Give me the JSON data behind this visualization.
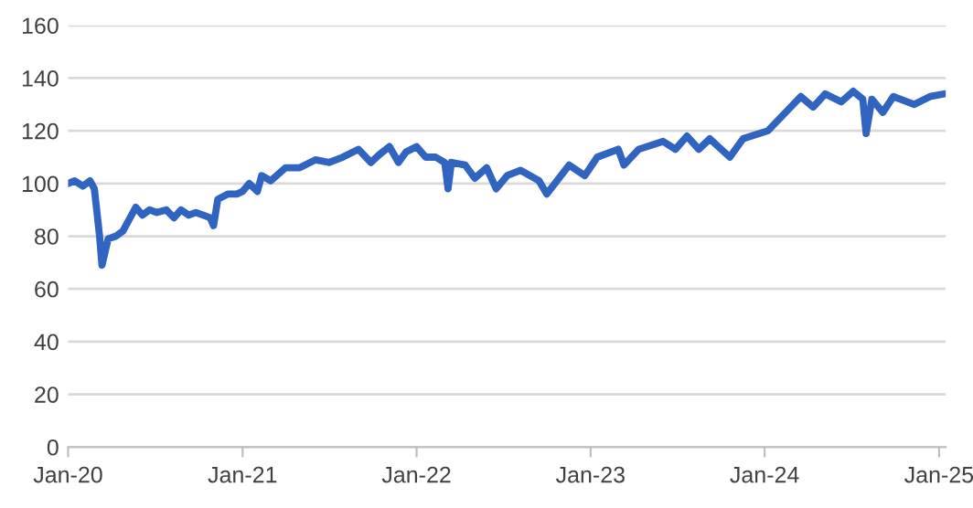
{
  "chart_data": {
    "type": "line",
    "x": [
      "2020-01-01",
      "2020-01-15",
      "2020-02-01",
      "2020-02-16",
      "2020-02-25",
      "2020-03-01",
      "2020-03-07",
      "2020-03-12",
      "2020-03-25",
      "2020-04-10",
      "2020-04-25",
      "2020-05-10",
      "2020-05-22",
      "2020-06-05",
      "2020-06-20",
      "2020-07-05",
      "2020-07-25",
      "2020-08-10",
      "2020-08-25",
      "2020-09-10",
      "2020-09-25",
      "2020-10-10",
      "2020-10-25",
      "2020-11-01",
      "2020-11-10",
      "2020-12-01",
      "2020-12-20",
      "2021-01-01",
      "2021-01-15",
      "2021-02-01",
      "2021-02-10",
      "2021-03-01",
      "2021-04-01",
      "2021-05-01",
      "2021-06-03",
      "2021-07-01",
      "2021-07-30",
      "2021-09-01",
      "2021-09-27",
      "2021-10-15",
      "2021-11-05",
      "2021-11-24",
      "2021-12-10",
      "2022-01-01",
      "2022-01-20",
      "2022-02-10",
      "2022-03-01",
      "2022-03-08",
      "2022-03-15",
      "2022-04-13",
      "2022-05-03",
      "2022-05-28",
      "2022-06-17",
      "2022-07-10",
      "2022-08-07",
      "2022-09-15",
      "2022-10-01",
      "2022-11-17",
      "2022-12-20",
      "2023-01-15",
      "2023-02-28",
      "2023-03-12",
      "2023-04-12",
      "2023-06-02",
      "2023-06-28",
      "2023-07-22",
      "2023-08-16",
      "2023-09-08",
      "2023-10-20",
      "2023-11-17",
      "2024-01-08",
      "2024-03-17",
      "2024-04-12",
      "2024-05-07",
      "2024-06-10",
      "2024-07-05",
      "2024-07-25",
      "2024-08-01",
      "2024-08-13",
      "2024-09-05",
      "2024-09-27",
      "2024-11-10",
      "2024-12-13",
      "2025-01-12"
    ],
    "series": [
      {
        "color": "#3163c0",
        "values": [
          100,
          101,
          99,
          101,
          98,
          90,
          80,
          69,
          79,
          80,
          82,
          87,
          91,
          88,
          90,
          89,
          90,
          87,
          90,
          88,
          89,
          88,
          87,
          84,
          94,
          96,
          96,
          97,
          100,
          97,
          103,
          101,
          106,
          106,
          109,
          108,
          110,
          113,
          108,
          111,
          114,
          108,
          112,
          114,
          110,
          110,
          108,
          98,
          108,
          107,
          102,
          106,
          98,
          103,
          105,
          101,
          96,
          107,
          103,
          110,
          113,
          107,
          113,
          116,
          113,
          118,
          113,
          117,
          110,
          117,
          120,
          133,
          129,
          134,
          131,
          135,
          132,
          119,
          132,
          127,
          133,
          130,
          133,
          134
        ]
      }
    ],
    "xlim": [
      "2020-01-01",
      "2025-01-15"
    ],
    "xticks": [
      {
        "value": "2020-01-01",
        "label": "Jan-20"
      },
      {
        "value": "2021-01-01",
        "label": "Jan-21"
      },
      {
        "value": "2022-01-01",
        "label": "Jan-22"
      },
      {
        "value": "2023-01-01",
        "label": "Jan-23"
      },
      {
        "value": "2024-01-01",
        "label": "Jan-24"
      },
      {
        "value": "2025-01-01",
        "label": "Jan-25"
      }
    ],
    "ylim": [
      0,
      160
    ],
    "yticks": [
      0,
      20,
      40,
      60,
      80,
      100,
      120,
      140,
      160
    ],
    "grid": "y",
    "legend": false,
    "marker": "none",
    "line_style": "solid"
  }
}
